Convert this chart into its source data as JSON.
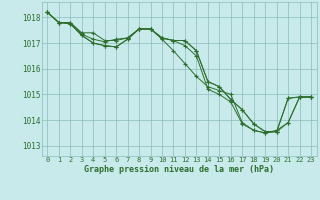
{
  "bg_color": "#c8eaea",
  "grid_color": "#8bbcbc",
  "line_color": "#2d6e2d",
  "marker_color": "#2d6e2d",
  "text_color": "#2d6e2d",
  "xlabel": "Graphe pression niveau de la mer (hPa)",
  "ylim": [
    1012.6,
    1018.6
  ],
  "xlim": [
    -0.5,
    23.5
  ],
  "yticks": [
    1013,
    1014,
    1015,
    1016,
    1017,
    1018
  ],
  "xticks": [
    0,
    1,
    2,
    3,
    4,
    5,
    6,
    7,
    8,
    9,
    10,
    11,
    12,
    13,
    14,
    15,
    16,
    17,
    18,
    19,
    20,
    21,
    22,
    23
  ],
  "series": [
    [
      1018.2,
      1017.8,
      1017.8,
      1017.4,
      1017.4,
      1017.1,
      1017.1,
      1017.2,
      1017.55,
      1017.55,
      1017.2,
      1017.1,
      1017.1,
      1016.7,
      1015.5,
      1015.3,
      1014.8,
      1014.4,
      1013.85,
      1013.55,
      1013.55,
      1014.85,
      1014.9,
      1014.9
    ],
    [
      1018.2,
      1017.8,
      1017.8,
      1017.35,
      1017.15,
      1017.05,
      1017.15,
      1017.2,
      1017.55,
      1017.55,
      1017.2,
      1017.1,
      1016.9,
      1016.5,
      1015.2,
      1015.0,
      1014.7,
      1013.85,
      1013.6,
      1013.5,
      1013.55,
      1013.9,
      1014.9,
      1014.9
    ],
    [
      1018.2,
      1017.8,
      1017.75,
      1017.3,
      1017.0,
      1016.9,
      1016.85,
      1017.15,
      1017.55,
      1017.55,
      1017.15,
      1016.7,
      1016.2,
      1015.7,
      1015.3,
      1015.15,
      1015.0,
      1013.9,
      1013.6,
      1013.5,
      1013.6,
      1013.9,
      1014.9,
      1014.9
    ],
    [
      1018.2,
      1017.8,
      1017.75,
      1017.3,
      1017.0,
      1016.9,
      1016.85,
      1017.15,
      1017.55,
      1017.55,
      1017.2,
      1017.1,
      1017.1,
      1016.7,
      1015.5,
      1015.3,
      1014.8,
      1014.4,
      1013.85,
      1013.55,
      1013.55,
      1014.85,
      1014.9,
      1014.9
    ]
  ]
}
